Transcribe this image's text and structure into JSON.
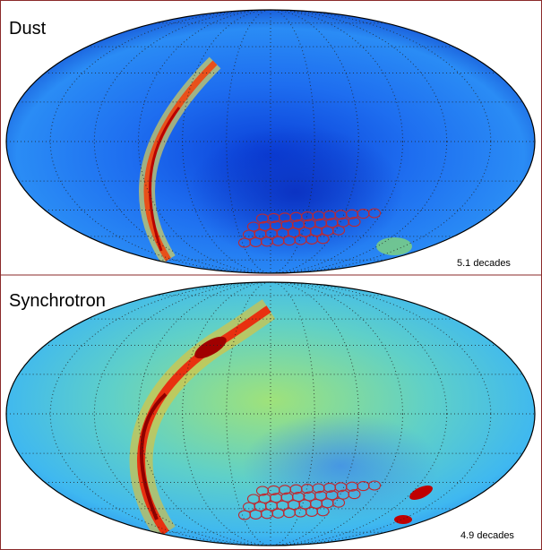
{
  "panels": [
    {
      "title": "Dust",
      "note": "5.1 decades"
    },
    {
      "title": "Synchrotron",
      "note": "4.9 decades"
    }
  ]
}
